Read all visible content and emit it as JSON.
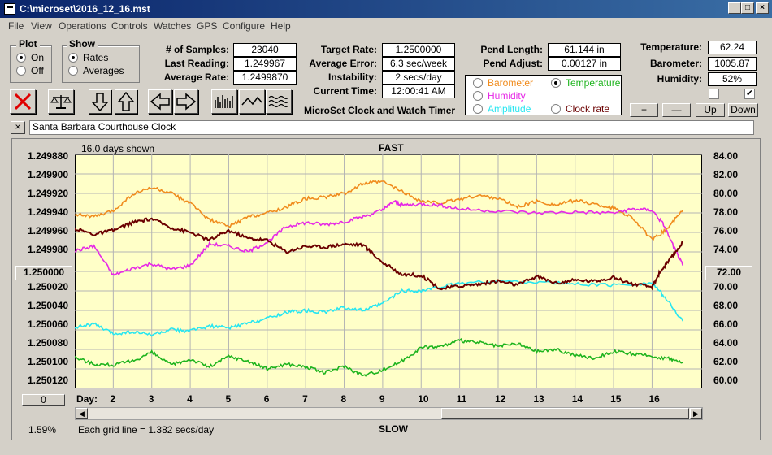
{
  "window": {
    "title": "C:\\microset\\2016_12_16.mst"
  },
  "menu": [
    "File",
    "View",
    "Operations",
    "Controls",
    "Watches",
    "GPS",
    "Configure",
    "Help"
  ],
  "plot": {
    "title": "Plot",
    "on_label": "On",
    "off_label": "Off",
    "selected": "On"
  },
  "show": {
    "title": "Show",
    "rates_label": "Rates",
    "averages_label": "Averages",
    "selected": "Rates"
  },
  "stats": {
    "samples_label": "# of Samples:",
    "samples": "23040",
    "last_reading_label": "Last Reading:",
    "last_reading": "1.249967",
    "average_rate_label": "Average Rate:",
    "average_rate": "1.2499870",
    "target_rate_label": "Target Rate:",
    "target_rate": "1.2500000",
    "average_error_label": "Average Error:",
    "average_error": "6.3 sec/week",
    "instability_label": "Instability:",
    "instability": "2 secs/day",
    "current_time_label": "Current Time:",
    "current_time": "12:00:41 AM",
    "pend_length_label": "Pend Length:",
    "pend_length": "61.144 in",
    "pend_adjust_label": "Pend Adjust:",
    "pend_adjust": "0.00127 in",
    "temperature_label": "Temperature:",
    "temperature": "62.24",
    "barometer_label": "Barometer:",
    "barometer": "1005.87",
    "humidity_label": "Humidity:",
    "humidity": "52%"
  },
  "app_caption": "MicroSet Clock and Watch Timer",
  "sensors": {
    "barometer": "Barometer",
    "temperature": "Temperature",
    "humidity": "Humidity",
    "amplitude": "Amplitude",
    "clock_rate": "Clock rate",
    "selected": "Temperature"
  },
  "sensor_buttons": {
    "plus": "+",
    "minus": "—",
    "up": "Up",
    "down": "Down"
  },
  "clock_name": "Santa Barbara Courthouse Clock",
  "colors": {
    "rate": "#6b0000",
    "barometer": "#f08c1e",
    "humidity": "#e628e6",
    "amplitude": "#28e6f0",
    "temperature": "#1eb41e",
    "plot_bg": "#ffffc8"
  },
  "chart_data": {
    "type": "line",
    "days_shown": "16.0 days shown",
    "top_label": "FAST",
    "bottom_label": "SLOW",
    "grid_note": "Each grid line = 1.382 secs/day",
    "scroll_percent": "1.59%",
    "x_axis_label": "Day:",
    "x_ticks": [
      "2",
      "3",
      "4",
      "5",
      "6",
      "7",
      "8",
      "9",
      "10",
      "11",
      "12",
      "13",
      "14",
      "15",
      "16"
    ],
    "x_range": [
      1,
      17.3
    ],
    "left_ticks": [
      "1.249880",
      "1.249900",
      "1.249920",
      "1.249940",
      "1.249960",
      "1.249980",
      "1.250000",
      "1.250020",
      "1.250040",
      "1.250060",
      "1.250080",
      "1.250100",
      "1.250120"
    ],
    "left_center_value": "1.250000",
    "right_ticks": [
      "84.00",
      "82.00",
      "80.00",
      "78.00",
      "76.00",
      "74.00",
      "72.00",
      "70.00",
      "68.00",
      "66.00",
      "64.00",
      "62.00",
      "60.00"
    ],
    "right_center_value": "72.00",
    "right_range": [
      60,
      84
    ],
    "bottom_left_value": "0",
    "series": [
      {
        "key": "barometer",
        "color": "#f08c1e",
        "points": [
          [
            1,
            77.9
          ],
          [
            1.5,
            77.6
          ],
          [
            2,
            78.2
          ],
          [
            2.5,
            79.9
          ],
          [
            3,
            80.6
          ],
          [
            3.5,
            80.0
          ],
          [
            4,
            79.0
          ],
          [
            4.5,
            77.3
          ],
          [
            5,
            76.6
          ],
          [
            5.5,
            77.6
          ],
          [
            6,
            78.0
          ],
          [
            6.5,
            78.6
          ],
          [
            7,
            79.5
          ],
          [
            7.5,
            79.6
          ],
          [
            8,
            80.0
          ],
          [
            8.5,
            81.0
          ],
          [
            9,
            81.2
          ],
          [
            9.5,
            80.2
          ],
          [
            10,
            79.2
          ],
          [
            10.5,
            79.0
          ],
          [
            11,
            79.4
          ],
          [
            11.5,
            79.8
          ],
          [
            12,
            79.5
          ],
          [
            12.5,
            78.6
          ],
          [
            13,
            79.2
          ],
          [
            13.5,
            78.8
          ],
          [
            14,
            79.3
          ],
          [
            14.5,
            78.9
          ],
          [
            15,
            78.5
          ],
          [
            15.5,
            77.5
          ],
          [
            16,
            75.2
          ],
          [
            16.4,
            76.4
          ],
          [
            16.8,
            78.3
          ]
        ]
      },
      {
        "key": "humidity",
        "color": "#e628e6",
        "points": [
          [
            1,
            74.1
          ],
          [
            1.5,
            74.6
          ],
          [
            2,
            71.6
          ],
          [
            2.5,
            72.3
          ],
          [
            3,
            72.8
          ],
          [
            3.5,
            72.2
          ],
          [
            4,
            72.6
          ],
          [
            4.5,
            74.8
          ],
          [
            5,
            74.6
          ],
          [
            5.5,
            74.0
          ],
          [
            6,
            75.0
          ],
          [
            6.5,
            76.6
          ],
          [
            7,
            77.0
          ],
          [
            7.5,
            76.8
          ],
          [
            8,
            77.1
          ],
          [
            8.5,
            77.6
          ],
          [
            9,
            78.3
          ],
          [
            9.3,
            79.2
          ],
          [
            9.5,
            78.8
          ],
          [
            10,
            78.9
          ],
          [
            10.5,
            78.8
          ],
          [
            11,
            78.4
          ],
          [
            12,
            78.2
          ],
          [
            13,
            78.0
          ],
          [
            14,
            78.1
          ],
          [
            15,
            78.0
          ],
          [
            15.5,
            78.4
          ],
          [
            16,
            78.3
          ],
          [
            16.3,
            76.8
          ],
          [
            16.6,
            74.2
          ],
          [
            16.8,
            72.6
          ]
        ]
      },
      {
        "key": "amplitude",
        "color": "#28e6f0",
        "points": [
          [
            1,
            66.3
          ],
          [
            1.5,
            66.6
          ],
          [
            2,
            65.6
          ],
          [
            2.5,
            65.8
          ],
          [
            3,
            65.5
          ],
          [
            3.5,
            66.0
          ],
          [
            4,
            65.9
          ],
          [
            4.5,
            66.4
          ],
          [
            5,
            66.2
          ],
          [
            5.5,
            66.7
          ],
          [
            6,
            67.2
          ],
          [
            6.5,
            67.8
          ],
          [
            7,
            68.0
          ],
          [
            7.5,
            67.8
          ],
          [
            8,
            68.3
          ],
          [
            8.5,
            68.0
          ],
          [
            9,
            68.7
          ],
          [
            9.5,
            70.0
          ],
          [
            10,
            70.0
          ],
          [
            10.5,
            70.4
          ],
          [
            11,
            70.8
          ],
          [
            12,
            71.0
          ],
          [
            13,
            70.9
          ],
          [
            14,
            70.7
          ],
          [
            15,
            70.6
          ],
          [
            16,
            70.8
          ],
          [
            16.3,
            69.5
          ],
          [
            16.8,
            66.9
          ]
        ]
      },
      {
        "key": "temperature",
        "color": "#1eb41e",
        "points": [
          [
            1,
            63.2
          ],
          [
            1.5,
            62.5
          ],
          [
            2,
            62.4
          ],
          [
            2.5,
            62.8
          ],
          [
            3,
            63.7
          ],
          [
            3.5,
            62.4
          ],
          [
            4,
            63.0
          ],
          [
            4.5,
            62.2
          ],
          [
            5,
            63.3
          ],
          [
            5.5,
            62.8
          ],
          [
            6,
            62.0
          ],
          [
            6.5,
            62.5
          ],
          [
            7,
            62.2
          ],
          [
            7.5,
            61.6
          ],
          [
            8,
            62.3
          ],
          [
            8.5,
            61.3
          ],
          [
            9,
            61.9
          ],
          [
            9.5,
            62.8
          ],
          [
            10,
            64.2
          ],
          [
            10.5,
            64.3
          ],
          [
            11,
            64.9
          ],
          [
            11.5,
            64.7
          ],
          [
            12,
            64.3
          ],
          [
            12.5,
            64.6
          ],
          [
            13,
            63.8
          ],
          [
            13.5,
            64.0
          ],
          [
            14,
            63.4
          ],
          [
            14.5,
            63.1
          ],
          [
            15,
            63.8
          ],
          [
            15.5,
            63.5
          ],
          [
            16,
            63.3
          ],
          [
            16.5,
            63.0
          ],
          [
            16.8,
            62.6
          ]
        ]
      },
      {
        "key": "rate",
        "color": "#6b0000",
        "points": [
          [
            1,
            76.4
          ],
          [
            1.5,
            75.8
          ],
          [
            2,
            76.2
          ],
          [
            2.5,
            77.0
          ],
          [
            3,
            77.4
          ],
          [
            3.5,
            76.5
          ],
          [
            4,
            76.0
          ],
          [
            4.5,
            75.2
          ],
          [
            5,
            76.2
          ],
          [
            5.5,
            75.4
          ],
          [
            6,
            75.2
          ],
          [
            6.5,
            74.0
          ],
          [
            7,
            74.6
          ],
          [
            7.5,
            74.5
          ],
          [
            8,
            74.8
          ],
          [
            8.5,
            74.7
          ],
          [
            9,
            72.9
          ],
          [
            9.5,
            71.7
          ],
          [
            10,
            71.6
          ],
          [
            10.5,
            70.2
          ],
          [
            11,
            70.5
          ],
          [
            11.5,
            70.7
          ],
          [
            12,
            71.0
          ],
          [
            12.5,
            70.6
          ],
          [
            13,
            71.5
          ],
          [
            13.5,
            70.8
          ],
          [
            14,
            71.1
          ],
          [
            14.5,
            71.0
          ],
          [
            15,
            71.4
          ],
          [
            15.5,
            70.7
          ],
          [
            16,
            70.4
          ],
          [
            16.2,
            71.9
          ],
          [
            16.5,
            73.4
          ],
          [
            16.8,
            75.0
          ]
        ]
      }
    ]
  }
}
